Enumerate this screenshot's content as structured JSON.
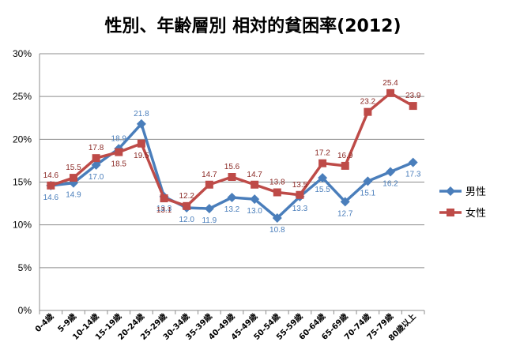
{
  "chart_data": {
    "type": "line",
    "title": "性別、年齢層別 相対的貧困率(2012)",
    "categories": [
      "0-4歳",
      "5-9歳",
      "10-14歳",
      "15-19歳",
      "20-24歳",
      "25-29歳",
      "30-34歳",
      "35-39歳",
      "40-49歳",
      "45-49歳",
      "50-54歳",
      "55-59歳",
      "60-64歳",
      "65-69歳",
      "70-74歳",
      "75-79歳",
      "80歳以上"
    ],
    "y_ticks": [
      "0%",
      "5%",
      "10%",
      "15%",
      "20%",
      "25%",
      "30%"
    ],
    "ylim": [
      0,
      30
    ],
    "grid": true,
    "legend_position": "right",
    "series": [
      {
        "name": "男性",
        "color": "#4a7ebb",
        "marker": "diamond",
        "values": [
          14.6,
          14.9,
          17.0,
          18.9,
          21.8,
          13.3,
          12.0,
          11.9,
          13.2,
          13.0,
          10.8,
          13.3,
          15.5,
          12.7,
          15.1,
          16.2,
          17.3
        ]
      },
      {
        "name": "女性",
        "color": "#be4b48",
        "marker": "square",
        "values": [
          14.6,
          15.5,
          17.8,
          18.5,
          19.5,
          13.1,
          12.2,
          14.7,
          15.6,
          14.7,
          13.8,
          13.5,
          17.2,
          16.9,
          23.2,
          25.4,
          23.9
        ]
      }
    ],
    "data_labels": {
      "male": [
        "14.6",
        "14.9",
        "17.0",
        "18.9",
        "21.8",
        "13.3",
        "12.0",
        "11.9",
        "13.2",
        "13.0",
        "10.8",
        "13.3",
        "15.5",
        "12.7",
        "15.1",
        "16.2",
        "17.3"
      ],
      "female": [
        "14.6",
        "15.5",
        "17.8",
        "18.5",
        "19.5",
        "13.1",
        "12.2",
        "14.7",
        "15.6",
        "14.7",
        "13.8",
        "13.5",
        "17.2",
        "16.9",
        "23.2",
        "25.4",
        "23.9"
      ]
    },
    "label_colors": {
      "male": "#4a7ebb",
      "female": "#8b2a26"
    }
  }
}
